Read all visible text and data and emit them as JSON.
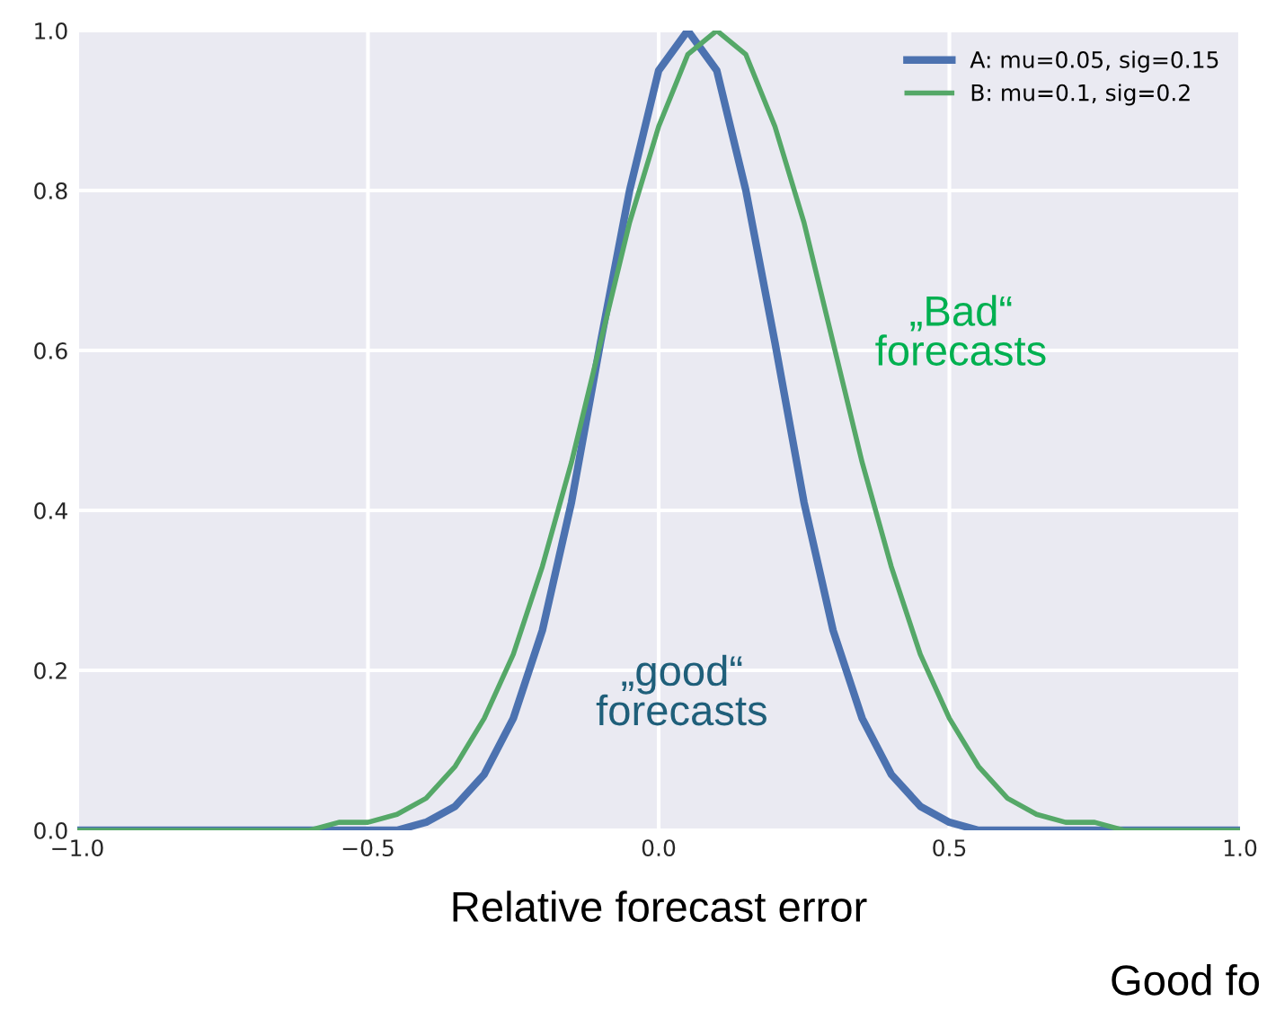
{
  "chart_data": {
    "type": "line",
    "xlabel": "Relative forecast error",
    "xlim": [
      -1.0,
      1.0
    ],
    "xticks": [
      {
        "value": -1.0,
        "label": "−1.0"
      },
      {
        "value": -0.5,
        "label": "−0.5"
      },
      {
        "value": 0,
        "label": "0.0"
      },
      {
        "value": 0.5,
        "label": "0.5"
      },
      {
        "value": 1.0,
        "label": "1.0"
      }
    ],
    "ylim": [
      0,
      1.0
    ],
    "yticks": [
      {
        "value": 0,
        "label": "0.0"
      },
      {
        "value": 0.2,
        "label": "0.2"
      },
      {
        "value": 0.4,
        "label": "0.4"
      },
      {
        "value": 0.6,
        "label": "0.6"
      },
      {
        "value": 0.8,
        "label": "0.8"
      },
      {
        "value": 1.0,
        "label": "1.0"
      }
    ],
    "grid": true,
    "legend": "top right",
    "marker": "none",
    "line_style": "solid",
    "series": [
      {
        "name": "A: mu=0.05, sig=0.15",
        "color": "#4c72b0",
        "x": [
          -1.0,
          -0.8,
          -0.6,
          -0.5,
          -0.45,
          -0.4,
          -0.35,
          -0.3,
          -0.25,
          -0.2,
          -0.15,
          -0.1,
          -0.05,
          0,
          0.05,
          0.1,
          0.15,
          0.2,
          0.25,
          0.3,
          0.35,
          0.4,
          0.45,
          0.5,
          0.55,
          0.6,
          0.7,
          0.8,
          1.0
        ],
        "values": [
          0,
          0,
          0,
          0.0,
          0.0,
          0.01,
          0.03,
          0.07,
          0.14,
          0.25,
          0.41,
          0.61,
          0.8,
          0.95,
          1.0,
          0.95,
          0.8,
          0.61,
          0.41,
          0.25,
          0.14,
          0.07,
          0.03,
          0.01,
          0.0,
          0.0,
          0,
          0,
          0
        ]
      },
      {
        "name": "B: mu=0.1, sig=0.2",
        "color": "#55a868",
        "x": [
          -1.0,
          -0.8,
          -0.6,
          -0.55,
          -0.5,
          -0.45,
          -0.4,
          -0.35,
          -0.3,
          -0.25,
          -0.2,
          -0.15,
          -0.1,
          -0.05,
          0,
          0.05,
          0.1,
          0.15,
          0.2,
          0.25,
          0.3,
          0.35,
          0.4,
          0.45,
          0.5,
          0.55,
          0.6,
          0.65,
          0.7,
          0.75,
          0.8,
          0.9,
          1.0
        ],
        "values": [
          0,
          0,
          0.0,
          0.01,
          0.01,
          0.02,
          0.04,
          0.08,
          0.14,
          0.22,
          0.33,
          0.46,
          0.61,
          0.76,
          0.88,
          0.97,
          1.0,
          0.97,
          0.88,
          0.76,
          0.61,
          0.46,
          0.33,
          0.22,
          0.14,
          0.08,
          0.04,
          0.02,
          0.01,
          0.01,
          0.0,
          0,
          0
        ]
      }
    ],
    "annotations": [
      "„Bad“\nforecasts",
      "„good“\nforecasts",
      "Good fo"
    ]
  }
}
